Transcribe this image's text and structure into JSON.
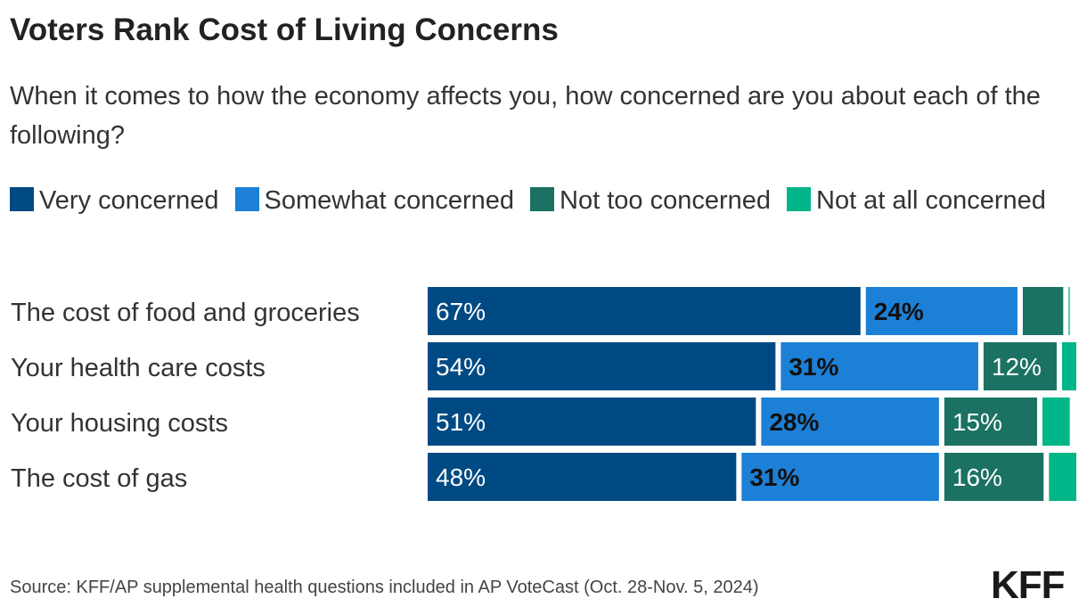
{
  "title": "Voters Rank Cost of Living Concerns",
  "subtitle": "When it comes to how the economy affects you, how concerned are you about each of the following?",
  "source": "Source: KFF/AP supplemental health questions included in AP VoteCast (Oct. 28-Nov. 5, 2024)",
  "logo": "KFF",
  "chart_data": {
    "type": "bar",
    "orientation": "horizontal",
    "stacked": true,
    "categories": [
      "The cost of food and groceries",
      "Your health care costs",
      "Your housing costs",
      "The cost of gas"
    ],
    "series": [
      {
        "name": "Very concerned",
        "color": "#004A84",
        "values": [
          67,
          54,
          51,
          48
        ],
        "labels": [
          "67%",
          "54%",
          "51%",
          "48%"
        ]
      },
      {
        "name": "Somewhat concerned",
        "color": "#1C80D6",
        "values": [
          24,
          31,
          28,
          31
        ],
        "labels": [
          "24%",
          "31%",
          "28%",
          "31%"
        ]
      },
      {
        "name": "Not too concerned",
        "color": "#1B7262",
        "values": [
          7,
          12,
          15,
          16
        ],
        "labels": [
          "",
          "12%",
          "15%",
          "16%"
        ]
      },
      {
        "name": "Not at all concerned",
        "color": "#00B588",
        "values": [
          1,
          3,
          5,
          5
        ],
        "labels": [
          "",
          "",
          "",
          ""
        ]
      }
    ],
    "xlim": [
      0,
      100
    ],
    "legend": "top",
    "grid": false
  }
}
